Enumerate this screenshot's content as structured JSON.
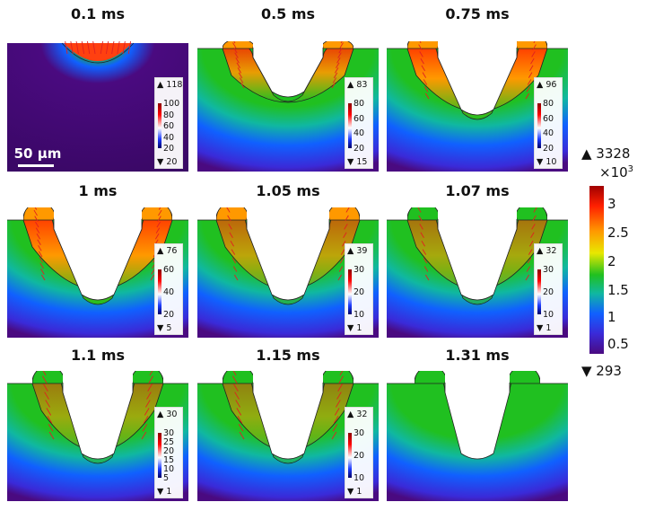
{
  "panels": [
    {
      "title": "0.1 ms",
      "legend": {
        "max": "▲ 118",
        "min": "▼ 20",
        "ticks": [
          "100",
          "80",
          "60",
          "40",
          "20"
        ]
      }
    },
    {
      "title": "0.5 ms",
      "legend": {
        "max": "▲ 83",
        "min": "▼ 15",
        "ticks": [
          "80",
          "60",
          "40",
          "20"
        ]
      }
    },
    {
      "title": "0.75 ms",
      "legend": {
        "max": "▲ 96",
        "min": "▼ 10",
        "ticks": [
          "80",
          "60",
          "40",
          "20"
        ]
      }
    },
    {
      "title": "1 ms",
      "legend": {
        "max": "▲ 76",
        "min": "▼ 5",
        "ticks": [
          "60",
          "40",
          "20"
        ]
      }
    },
    {
      "title": "1.05 ms",
      "legend": {
        "max": "▲ 39",
        "min": "▼ 1",
        "ticks": [
          "30",
          "20",
          "10"
        ]
      }
    },
    {
      "title": "1.07 ms",
      "legend": {
        "max": "▲ 32",
        "min": "▼ 1",
        "ticks": [
          "30",
          "20",
          "10"
        ]
      }
    },
    {
      "title": "1.1 ms",
      "legend": {
        "max": "▲ 30",
        "min": "▼ 1",
        "ticks": [
          "30",
          "25",
          "20",
          "15",
          "10",
          "5"
        ]
      }
    },
    {
      "title": "1.15 ms",
      "legend": {
        "max": "▲ 32",
        "min": "▼ 1",
        "ticks": [
          "30",
          "20",
          "10"
        ]
      }
    },
    {
      "title": "1.31 ms",
      "legend": null
    }
  ],
  "scale_bar": {
    "label": "50 µm"
  },
  "colorbar": {
    "max": "▲ 3328",
    "multiplier_base": "×10",
    "multiplier_exp": "3",
    "ticks": [
      "3",
      "2.5",
      "2",
      "1.5",
      "1",
      "0.5"
    ],
    "min": "▼ 293"
  },
  "colors": {
    "hot": "#ff2000",
    "warm": "#ff9900",
    "mid": "#20c020",
    "cool": "#1060ff",
    "cold": "#4a0a80",
    "arrow": "#e02020"
  }
}
